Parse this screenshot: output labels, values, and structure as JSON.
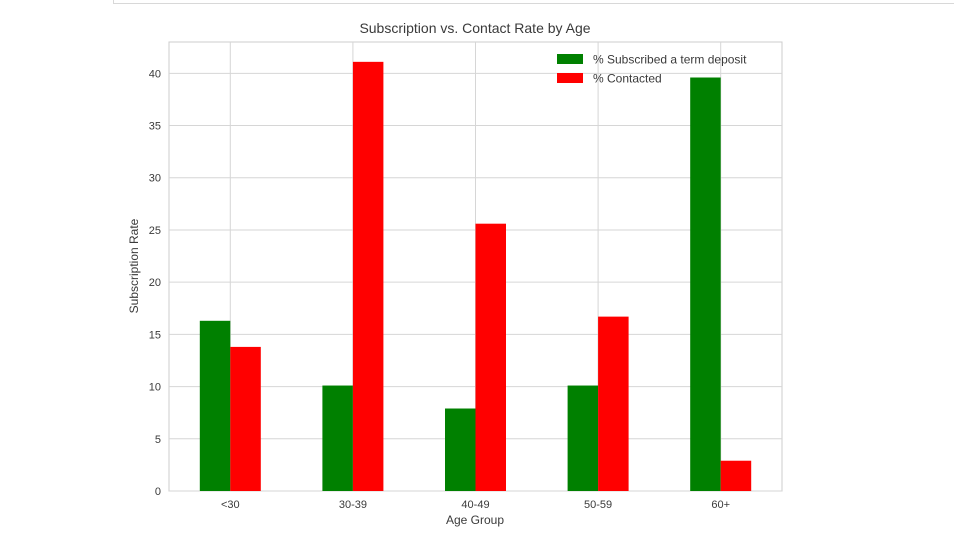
{
  "chart_data": {
    "type": "bar",
    "title": "Subscription vs. Contact Rate by Age",
    "xlabel": "Age Group",
    "ylabel": "Subscription Rate",
    "categories": [
      "<30",
      "30-39",
      "40-49",
      "50-59",
      "60+"
    ],
    "series": [
      {
        "name": "% Subscribed a term deposit",
        "color": "#008000",
        "values": [
          16.3,
          10.1,
          7.9,
          10.1,
          39.6
        ]
      },
      {
        "name": "% Contacted",
        "color": "#ff0000",
        "values": [
          13.8,
          41.1,
          25.6,
          16.7,
          2.9
        ]
      }
    ],
    "ylim": [
      0,
      43
    ],
    "yticks": [
      "0",
      "5",
      "10",
      "15",
      "20",
      "25",
      "30",
      "35",
      "40"
    ],
    "grid": true,
    "legend": "top-right"
  }
}
